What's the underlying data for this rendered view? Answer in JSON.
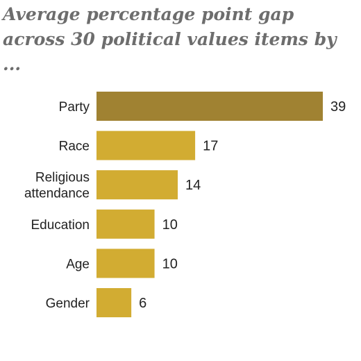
{
  "chart_data": {
    "type": "bar",
    "orientation": "horizontal",
    "title": "Average percentage point gap across 30 political values items by ...",
    "categories": [
      "Party",
      "Race",
      "Religious attendance",
      "Education",
      "Age",
      "Gender"
    ],
    "category_lines": [
      [
        "Party"
      ],
      [
        "Race"
      ],
      [
        "Religious",
        "attendance"
      ],
      [
        "Education"
      ],
      [
        "Age"
      ],
      [
        "Gender"
      ]
    ],
    "values": [
      39,
      17,
      14,
      10,
      10,
      6
    ],
    "colors": [
      "#a08232",
      "#d2ac32",
      "#d2ac32",
      "#d2ac32",
      "#d2ac32",
      "#d2ac32"
    ],
    "xlim": [
      0,
      39
    ],
    "grid": false,
    "legend": "none"
  }
}
